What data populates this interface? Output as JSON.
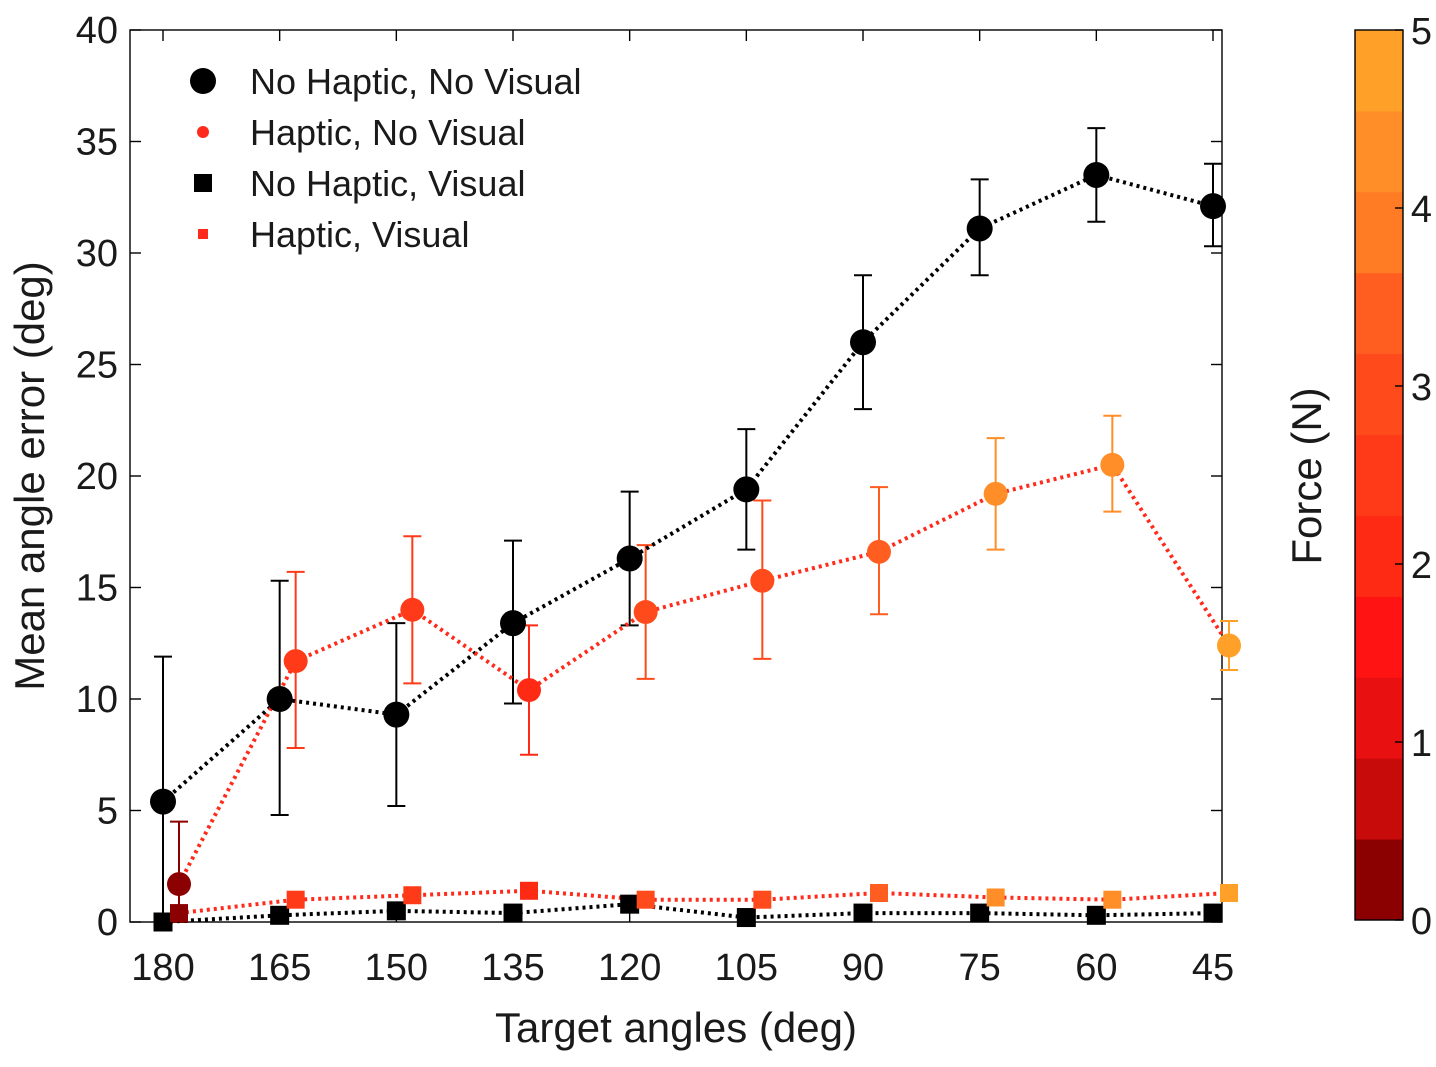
{
  "chart_data": {
    "type": "line",
    "xlabel": "Target angles (deg)",
    "ylabel": "Mean angle error (deg)",
    "categories": [
      "180",
      "165",
      "150",
      "135",
      "120",
      "105",
      "90",
      "75",
      "60",
      "45"
    ],
    "ylim": [
      0,
      40
    ],
    "yticks": [
      0,
      5,
      10,
      15,
      20,
      25,
      30,
      35,
      40
    ],
    "grid": false,
    "legend_position": "top-left",
    "series": [
      {
        "name": "No Haptic, No Visual",
        "marker": "circle-large",
        "color": "#000000",
        "values": [
          5.4,
          10.0,
          9.3,
          13.4,
          16.3,
          19.4,
          26.0,
          31.1,
          33.5,
          32.1
        ],
        "err_low": [
          0.0,
          4.8,
          5.2,
          9.8,
          13.3,
          16.7,
          23.0,
          29.0,
          31.4,
          30.3
        ],
        "err_high": [
          11.9,
          15.3,
          13.4,
          17.1,
          19.3,
          22.1,
          29.0,
          33.3,
          35.6,
          34.0
        ]
      },
      {
        "name": "Haptic, No Visual",
        "marker": "circle-small",
        "color": "#ff2a1a",
        "values": [
          1.7,
          11.7,
          14.0,
          10.4,
          13.9,
          15.3,
          16.6,
          19.2,
          20.5,
          12.4
        ],
        "err_low": [
          0.0,
          7.8,
          10.7,
          7.5,
          10.9,
          11.8,
          13.8,
          16.7,
          18.4,
          11.3
        ],
        "err_high": [
          4.5,
          15.7,
          17.3,
          13.3,
          16.9,
          18.9,
          19.5,
          21.7,
          22.7,
          13.5
        ],
        "force": [
          0.3,
          2.5,
          2.4,
          2.2,
          2.8,
          3.0,
          3.3,
          4.2,
          4.4,
          5.0
        ]
      },
      {
        "name": "No Haptic, Visual",
        "marker": "square-large",
        "color": "#000000",
        "values": [
          0.0,
          0.3,
          0.5,
          0.4,
          0.8,
          0.2,
          0.4,
          0.4,
          0.3,
          0.4
        ]
      },
      {
        "name": "Haptic, Visual",
        "marker": "square-small",
        "color": "#ff2a1a",
        "values": [
          0.4,
          1.0,
          1.2,
          1.4,
          1.0,
          1.0,
          1.3,
          1.1,
          1.0,
          1.3
        ],
        "force": [
          0.3,
          2.5,
          2.4,
          2.2,
          2.8,
          3.0,
          3.3,
          4.2,
          4.4,
          5.0
        ]
      }
    ],
    "colorbar": {
      "label": "Force (N)",
      "range": [
        0,
        5
      ],
      "ticks": [
        0,
        1,
        2,
        3,
        4,
        5
      ],
      "colors": [
        "#8b0000",
        "#c70a0a",
        "#e81010",
        "#ff1313",
        "#ff2a14",
        "#ff3a18",
        "#ff4a1c",
        "#ff5e20",
        "#ff7b24",
        "#ff8e28",
        "#ffa028"
      ]
    }
  }
}
